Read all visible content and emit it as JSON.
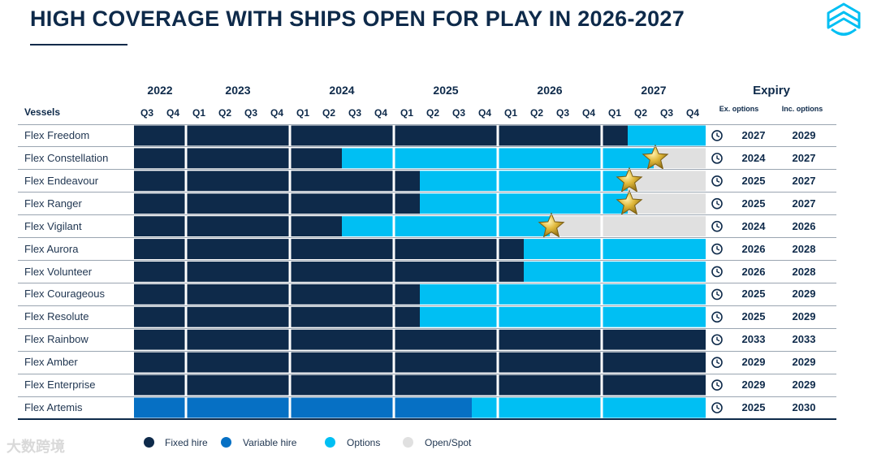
{
  "title": "HIGH COVERAGE WITH SHIPS OPEN FOR PLAY IN 2026-2027",
  "header": {
    "vessels_label": "Vessels",
    "expiry_label": "Expiry",
    "ex_options_label": "Ex. options",
    "inc_options_label": "Inc. options"
  },
  "watermark": "大数跨境",
  "colors": {
    "fixed_hire": "#0e2a4a",
    "variable_hire": "#0670c4",
    "options": "#00bff3",
    "open_spot": "#e0e0e0"
  },
  "chart_data": {
    "type": "gantt",
    "title": "HIGH COVERAGE WITH SHIPS OPEN FOR PLAY IN 2026-2027",
    "years": [
      {
        "label": "2022",
        "quarters": [
          "Q3",
          "Q4"
        ]
      },
      {
        "label": "2023",
        "quarters": [
          "Q1",
          "Q2",
          "Q3",
          "Q4"
        ]
      },
      {
        "label": "2024",
        "quarters": [
          "Q1",
          "Q2",
          "Q3",
          "Q4"
        ]
      },
      {
        "label": "2025",
        "quarters": [
          "Q1",
          "Q2",
          "Q3",
          "Q4"
        ]
      },
      {
        "label": "2026",
        "quarters": [
          "Q1",
          "Q2",
          "Q3",
          "Q4"
        ]
      },
      {
        "label": "2027",
        "quarters": [
          "Q1",
          "Q2",
          "Q3",
          "Q4"
        ]
      }
    ],
    "axis_start": "2022 Q3",
    "axis_end": "2027 Q4",
    "legend": [
      {
        "key": "fixed",
        "label": "Fixed hire"
      },
      {
        "key": "variable",
        "label": "Variable hire"
      },
      {
        "key": "options",
        "label": "Options"
      },
      {
        "key": "open",
        "label": "Open/Spot"
      }
    ],
    "legend_position": "bottom",
    "vessels": [
      {
        "name": "Flex Freedom",
        "segments": [
          {
            "type": "fixed",
            "start": 2022.5,
            "end": 2027.25
          },
          {
            "type": "options",
            "start": 2027.25,
            "end": 2028.0
          }
        ],
        "star": null,
        "expiry_ex": "2027",
        "expiry_inc": "2029"
      },
      {
        "name": "Flex Constellation",
        "segments": [
          {
            "type": "fixed",
            "start": 2022.5,
            "end": 2024.5
          },
          {
            "type": "options",
            "start": 2024.5,
            "end": 2027.5
          },
          {
            "type": "open",
            "start": 2027.5,
            "end": 2028.0
          }
        ],
        "star": 2027.5,
        "expiry_ex": "2024",
        "expiry_inc": "2027"
      },
      {
        "name": "Flex Endeavour",
        "segments": [
          {
            "type": "fixed",
            "start": 2022.5,
            "end": 2025.25
          },
          {
            "type": "options",
            "start": 2025.25,
            "end": 2027.25
          },
          {
            "type": "open",
            "start": 2027.25,
            "end": 2028.0
          }
        ],
        "star": 2027.25,
        "expiry_ex": "2025",
        "expiry_inc": "2027"
      },
      {
        "name": "Flex Ranger",
        "segments": [
          {
            "type": "fixed",
            "start": 2022.5,
            "end": 2025.25
          },
          {
            "type": "options",
            "start": 2025.25,
            "end": 2027.25
          },
          {
            "type": "open",
            "start": 2027.25,
            "end": 2028.0
          }
        ],
        "star": 2027.25,
        "expiry_ex": "2025",
        "expiry_inc": "2027"
      },
      {
        "name": "Flex Vigilant",
        "segments": [
          {
            "type": "fixed",
            "start": 2022.5,
            "end": 2024.5
          },
          {
            "type": "options",
            "start": 2024.5,
            "end": 2026.5
          },
          {
            "type": "open",
            "start": 2026.5,
            "end": 2028.0
          }
        ],
        "star": 2026.5,
        "expiry_ex": "2024",
        "expiry_inc": "2026"
      },
      {
        "name": "Flex Aurora",
        "segments": [
          {
            "type": "fixed",
            "start": 2022.5,
            "end": 2026.25
          },
          {
            "type": "options",
            "start": 2026.25,
            "end": 2028.0
          }
        ],
        "star": null,
        "expiry_ex": "2026",
        "expiry_inc": "2028"
      },
      {
        "name": "Flex Volunteer",
        "segments": [
          {
            "type": "fixed",
            "start": 2022.5,
            "end": 2026.25
          },
          {
            "type": "options",
            "start": 2026.25,
            "end": 2028.0
          }
        ],
        "star": null,
        "expiry_ex": "2026",
        "expiry_inc": "2028"
      },
      {
        "name": "Flex Courageous",
        "segments": [
          {
            "type": "fixed",
            "start": 2022.5,
            "end": 2025.25
          },
          {
            "type": "options",
            "start": 2025.25,
            "end": 2028.0
          }
        ],
        "star": null,
        "expiry_ex": "2025",
        "expiry_inc": "2029"
      },
      {
        "name": "Flex Resolute",
        "segments": [
          {
            "type": "fixed",
            "start": 2022.5,
            "end": 2025.25
          },
          {
            "type": "options",
            "start": 2025.25,
            "end": 2028.0
          }
        ],
        "star": null,
        "expiry_ex": "2025",
        "expiry_inc": "2029"
      },
      {
        "name": "Flex Rainbow",
        "segments": [
          {
            "type": "fixed",
            "start": 2022.5,
            "end": 2028.0
          }
        ],
        "star": null,
        "expiry_ex": "2033",
        "expiry_inc": "2033"
      },
      {
        "name": "Flex Amber",
        "segments": [
          {
            "type": "fixed",
            "start": 2022.5,
            "end": 2028.0
          }
        ],
        "star": null,
        "expiry_ex": "2029",
        "expiry_inc": "2029"
      },
      {
        "name": "Flex Enterprise",
        "segments": [
          {
            "type": "fixed",
            "start": 2022.5,
            "end": 2028.0
          }
        ],
        "star": null,
        "expiry_ex": "2029",
        "expiry_inc": "2029"
      },
      {
        "name": "Flex Artemis",
        "segments": [
          {
            "type": "variable",
            "start": 2022.5,
            "end": 2025.75
          },
          {
            "type": "options",
            "start": 2025.75,
            "end": 2028.0
          }
        ],
        "star": null,
        "expiry_ex": "2025",
        "expiry_inc": "2030"
      }
    ]
  }
}
